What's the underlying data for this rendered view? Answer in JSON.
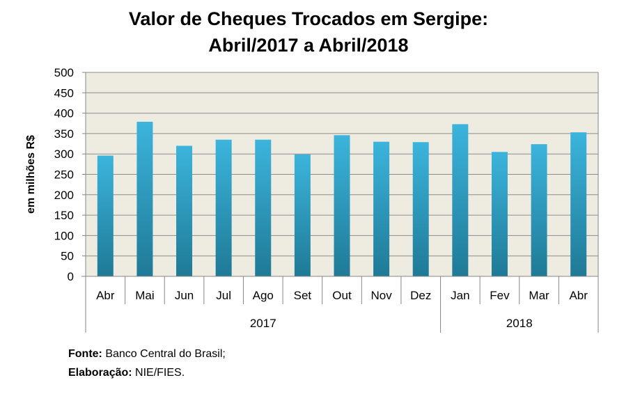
{
  "chart_data": {
    "type": "bar",
    "title_line1": "Valor de Cheques Trocados em Sergipe:",
    "title_line2": "Abril/2017 a Abril/2018",
    "ylabel": "em milhões R$",
    "xlabel": "",
    "ylim": [
      0,
      500
    ],
    "yticks": [
      "0",
      "50",
      "100",
      "150",
      "200",
      "250",
      "300",
      "350",
      "400",
      "450",
      "500"
    ],
    "grid": true,
    "categories": [
      "Abr",
      "Mai",
      "Jun",
      "Jul",
      "Ago",
      "Set",
      "Out",
      "Nov",
      "Dez",
      "Jan",
      "Fev",
      "Mar",
      "Abr"
    ],
    "values": [
      296,
      379,
      320,
      335,
      335,
      299,
      346,
      330,
      329,
      373,
      305,
      324,
      353
    ],
    "groups": [
      {
        "label": "2017",
        "count": 9
      },
      {
        "label": "2018",
        "count": 4
      }
    ],
    "colors": {
      "bar_top": "#3cb4dc",
      "bar_bottom": "#1f7a96",
      "plot_bg": "#eeece1",
      "grid": "#8c8c8c",
      "axis": "#868686"
    }
  },
  "footer": {
    "source_label": "Fonte:",
    "source_value": " Banco Central do Brasil;",
    "credit_label": "Elaboração:",
    "credit_value": " NIE/FIES."
  }
}
